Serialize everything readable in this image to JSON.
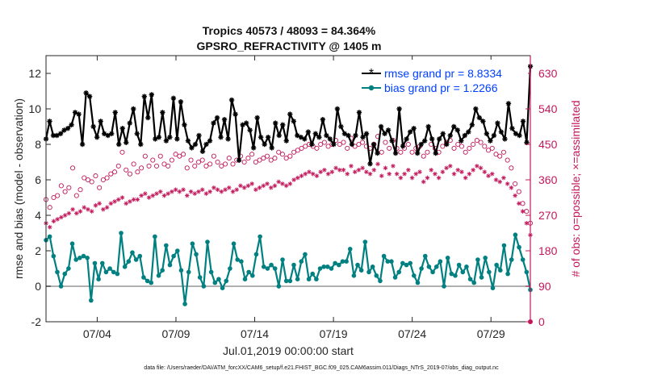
{
  "chart_data": {
    "type": "line",
    "title_line1": "Tropics 40573 / 48093 = 84.364%",
    "title_line2": "GPSRO_REFRACTIVITY @ 1405 m",
    "ylabel_left": "rmse and bias (model - observation)",
    "ylabel_right": "# of obs: o=possible; ×=assimilated",
    "xlabel": "Jul.01,2019 00:00:00 start",
    "footer": "data file: /Users/raeder/DAI/ATM_forcXX/CAM6_setup/f.e21.FHIST_BGC.f09_025.CAM6assim.011/Diags_NTrS_2019-07/obs_diag_output.nc",
    "ylim_left": [
      -2,
      13
    ],
    "yticks_left": [
      -2,
      0,
      2,
      4,
      6,
      8,
      10,
      12
    ],
    "ylim_right": [
      0,
      675
    ],
    "yticks_right": [
      0,
      90,
      180,
      270,
      360,
      450,
      540,
      630
    ],
    "xlim": [
      0,
      123
    ],
    "xtick_labels": [
      "07/04",
      "07/09",
      "07/14",
      "07/19",
      "07/24",
      "07/29"
    ],
    "xtick_positions": [
      13,
      33,
      53,
      73,
      93,
      113
    ],
    "zero_line": 0,
    "series": [
      {
        "name": "rmse grand pr = 8.8334",
        "axis": "left",
        "color": "#000000",
        "marker": "asterisk",
        "values": [
          8.3,
          9.3,
          8.5,
          8.5,
          8.6,
          8.8,
          8.9,
          9.1,
          9.8,
          9.7,
          8.0,
          10.9,
          10.7,
          9.0,
          8.4,
          9.3,
          8.6,
          8.5,
          8.6,
          9.8,
          8.0,
          8.9,
          8.1,
          9.2,
          10.0,
          8.6,
          8.0,
          10.7,
          9.5,
          10.8,
          8.3,
          8.4,
          9.8,
          8.2,
          8.4,
          10.6,
          8.3,
          10.4,
          9.1,
          8.2,
          7.8,
          8.0,
          8.5,
          7.6,
          8.0,
          8.2,
          9.2,
          9.5,
          8.4,
          9.4,
          8.3,
          10.5,
          9.7,
          7.1,
          9.1,
          9.2,
          8.8,
          7.8,
          9.5,
          8.4,
          8.0,
          8.4,
          7.8,
          9.2,
          8.5,
          9.1,
          8.2,
          9.7,
          9.3,
          8.5,
          8.4,
          8.3,
          8.7,
          8.0,
          8.6,
          8.4,
          9.4,
          8.5,
          8.3,
          8.0,
          10.0,
          9.0,
          8.6,
          8.5,
          8.0,
          8.5,
          9.8,
          8.4,
          8.6,
          6.9,
          8.0,
          7.5,
          9.0,
          8.6,
          8.8,
          8.2,
          7.5,
          10.0,
          7.9,
          8.3,
          8.7,
          8.9,
          7.5,
          8.0,
          8.2,
          9.0,
          8.3,
          7.5,
          8.3,
          8.6,
          8.0,
          8.5,
          9.0,
          8.8,
          8.2,
          8.5,
          8.7,
          9.1,
          10.0,
          9.5,
          9.3,
          8.6,
          8.2,
          8.5,
          9.2,
          8.7,
          8.3,
          10.3,
          8.9,
          8.6,
          8.5,
          9.3,
          8.1,
          12.4
        ],
        "values_note": "rmse values"
      },
      {
        "name": "bias grand pr = 1.2266",
        "axis": "left",
        "color": "#008080",
        "marker": "dot",
        "values": [
          2.6,
          2.8,
          1.7,
          0.8,
          0.0,
          0.7,
          1.0,
          2.4,
          1.5,
          1.6,
          1.7,
          1.6,
          -0.8,
          1.3,
          0.4,
          1.3,
          0.8,
          1.0,
          0.8,
          0.7,
          3.0,
          1.1,
          1.4,
          1.9,
          1.5,
          1.7,
          0.5,
          0.3,
          0.2,
          2.8,
          0.6,
          0.9,
          2.3,
          1.2,
          1.7,
          2.0,
          0.9,
          -1.0,
          0.8,
          2.4,
          1.8,
          0.5,
          0.0,
          2.5,
          0.8,
          0.2,
          0.4,
          -0.1,
          0.3,
          1.0,
          2.4,
          1.5,
          1.4,
          0.4,
          0.8,
          0.6,
          1.8,
          2.8,
          1.1,
          1.0,
          1.2,
          1.0,
          0.0,
          1.5,
          0.3,
          0.3,
          1.2,
          0.4,
          1.4,
          1.8,
          0.4,
          0.7,
          0.4,
          1.0,
          1.1,
          1.1,
          1.0,
          1.3,
          1.2,
          1.4,
          1.4,
          2.1,
          0.6,
          1.2,
          0.9,
          2.5,
          0.8,
          1.1,
          0.6,
          0.3,
          1.7,
          1.4,
          1.4,
          0.5,
          0.8,
          1.3,
          1.2,
          1.3,
          0.6,
          0.2,
          1.0,
          1.7,
          1.1,
          0.8,
          1.1,
          1.4,
          0.0,
          1.6,
          0.7,
          0.6,
          1.2,
          0.8,
          1.1,
          0.4,
          0.2,
          1.5,
          0.5,
          1.6,
          0.8,
          -0.1,
          1.2,
          0.9,
          2.3,
          0.7,
          1.5,
          2.9,
          2.2,
          1.5,
          0.8,
          -0.2
        ],
        "values_note": "bias values"
      },
      {
        "name": "obs possible",
        "axis": "right",
        "color": "#c2185b",
        "marker": "circle-open",
        "values": [
          310,
          290,
          315,
          320,
          345,
          330,
          340,
          390,
          320,
          335,
          365,
          360,
          355,
          370,
          340,
          360,
          365,
          375,
          380,
          395,
          430,
          385,
          375,
          400,
          380,
          390,
          420,
          395,
          410,
          395,
          420,
          400,
          395,
          410,
          425,
          420,
          425,
          390,
          410,
          395,
          405,
          410,
          395,
          400,
          420,
          405,
          395,
          400,
          415,
          400,
          410,
          420,
          405,
          415,
          425,
          405,
          410,
          415,
          420,
          410,
          415,
          430,
          425,
          415,
          420,
          430,
          435,
          440,
          445,
          450,
          445,
          440,
          450,
          455,
          445,
          450,
          460,
          450,
          455,
          440,
          465,
          445,
          450,
          455,
          445,
          440,
          450,
          470,
          430,
          455,
          440,
          460,
          440,
          430,
          440,
          450,
          430,
          440,
          445,
          420,
          430,
          450,
          440,
          430,
          445,
          455,
          460,
          440,
          450,
          445,
          430,
          440,
          450,
          460,
          455,
          445,
          435,
          440,
          425,
          420,
          430,
          410,
          390,
          350,
          330,
          300,
          280,
          250
        ]
      },
      {
        "name": "obs assimilated",
        "axis": "right",
        "color": "#c2185b",
        "marker": "asterisk",
        "values": [
          250,
          240,
          255,
          260,
          265,
          270,
          275,
          285,
          275,
          280,
          290,
          285,
          280,
          295,
          300,
          285,
          290,
          300,
          305,
          310,
          315,
          300,
          305,
          310,
          310,
          320,
          325,
          315,
          320,
          325,
          330,
          320,
          325,
          330,
          335,
          330,
          335,
          320,
          330,
          325,
          330,
          335,
          325,
          330,
          340,
          335,
          330,
          335,
          340,
          330,
          335,
          345,
          340,
          345,
          350,
          335,
          340,
          345,
          350,
          340,
          345,
          355,
          350,
          345,
          350,
          360,
          365,
          370,
          375,
          380,
          375,
          370,
          380,
          385,
          375,
          380,
          390,
          385,
          385,
          375,
          395,
          380,
          385,
          390,
          380,
          375,
          385,
          400,
          370,
          390,
          375,
          395,
          375,
          365,
          375,
          385,
          365,
          375,
          380,
          355,
          365,
          385,
          375,
          365,
          380,
          390,
          395,
          375,
          385,
          380,
          365,
          375,
          385,
          395,
          390,
          380,
          370,
          375,
          360,
          355,
          365,
          350,
          340,
          320,
          300,
          280,
          250,
          220
        ]
      }
    ]
  },
  "legend": {
    "items": [
      {
        "label": "rmse grand pr = 8.8334",
        "color": "#0040ff"
      },
      {
        "label": "bias grand pr = 1.2266",
        "color": "#0040ff"
      }
    ]
  }
}
